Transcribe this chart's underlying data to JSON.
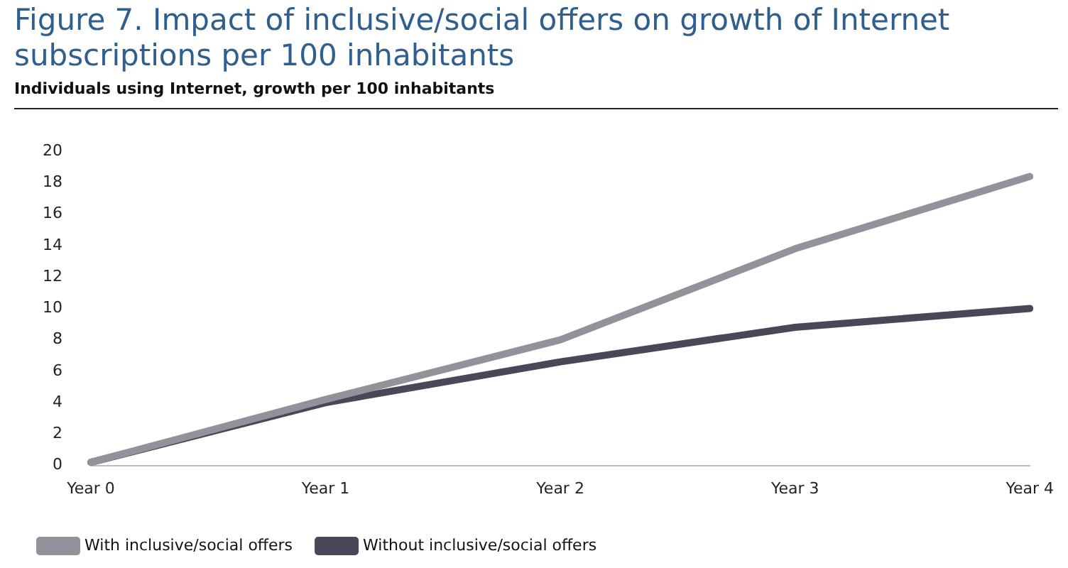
{
  "chart_data": {
    "type": "line",
    "title": "Figure 7. Impact of inclusive/social offers on growth of Internet subscriptions per 100 inhabitants",
    "ylabel": "Individuals using Internet, growth per 100 inhabitants",
    "categories": [
      "Year 0",
      "Year 1",
      "Year 2",
      "Year 3",
      "Year 4"
    ],
    "series": [
      {
        "name": "With inclusive/social offers",
        "color": "#939199",
        "values": [
          0.2,
          4.2,
          8,
          13.8,
          18.4
        ]
      },
      {
        "name": "Without inclusive/social offers",
        "color": "#4a4858",
        "values": [
          0.2,
          4,
          6.6,
          8.8,
          10
        ]
      }
    ],
    "ylim": [
      0,
      20
    ],
    "yticks": [
      0,
      2,
      4,
      6,
      8,
      10,
      12,
      14,
      16,
      18,
      20
    ],
    "grid": false,
    "legend": "bottom left",
    "marker": "none",
    "line_style": "solid"
  }
}
